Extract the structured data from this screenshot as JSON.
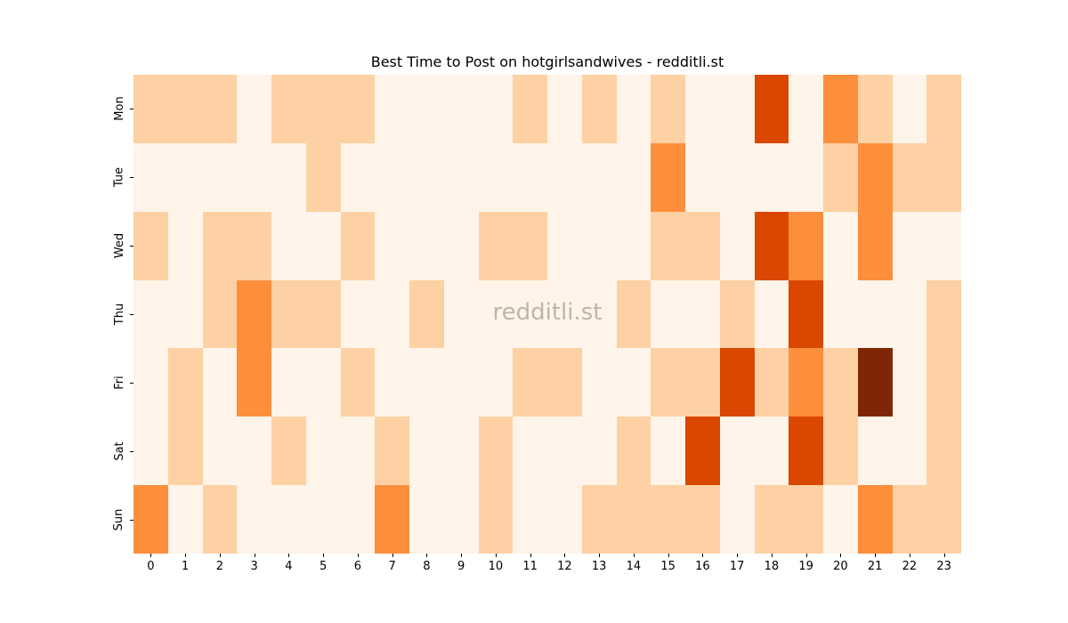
{
  "chart_data": {
    "type": "heatmap",
    "title": "Best Time to Post on hotgirlsandwives - redditli.st",
    "xlabel": "",
    "ylabel": "",
    "x": [
      "0",
      "1",
      "2",
      "3",
      "4",
      "5",
      "6",
      "7",
      "8",
      "9",
      "10",
      "11",
      "12",
      "13",
      "14",
      "15",
      "16",
      "17",
      "18",
      "19",
      "20",
      "21",
      "22",
      "23"
    ],
    "y": [
      "Mon",
      "Tue",
      "Wed",
      "Thu",
      "Fri",
      "Sat",
      "Sun"
    ],
    "values": [
      [
        1,
        1,
        1,
        0,
        1,
        1,
        1,
        0,
        0,
        0,
        0,
        1,
        0,
        1,
        0,
        1,
        0,
        0,
        3,
        0,
        2,
        1,
        0,
        1
      ],
      [
        0,
        0,
        0,
        0,
        0,
        1,
        0,
        0,
        0,
        0,
        0,
        0,
        0,
        0,
        0,
        2,
        0,
        0,
        0,
        0,
        1,
        2,
        1,
        1
      ],
      [
        1,
        0,
        1,
        1,
        0,
        0,
        1,
        0,
        0,
        0,
        1,
        1,
        0,
        0,
        0,
        1,
        1,
        0,
        3,
        2,
        0,
        2,
        0,
        0
      ],
      [
        0,
        0,
        1,
        2,
        1,
        1,
        0,
        0,
        1,
        0,
        0,
        0,
        0,
        0,
        1,
        0,
        0,
        1,
        0,
        3,
        0,
        0,
        0,
        1
      ],
      [
        0,
        1,
        0,
        2,
        0,
        0,
        1,
        0,
        0,
        0,
        0,
        1,
        1,
        0,
        0,
        1,
        1,
        3,
        1,
        2,
        1,
        4,
        0,
        1
      ],
      [
        0,
        1,
        0,
        0,
        1,
        0,
        0,
        1,
        0,
        0,
        1,
        0,
        0,
        0,
        1,
        0,
        3,
        0,
        0,
        3,
        1,
        0,
        0,
        1
      ],
      [
        2,
        0,
        1,
        0,
        0,
        0,
        0,
        2,
        0,
        0,
        1,
        0,
        0,
        1,
        1,
        1,
        1,
        0,
        1,
        1,
        0,
        2,
        1,
        1
      ]
    ],
    "colormap": "Oranges",
    "color_levels": [
      "#fef4e9",
      "#fdd1a3",
      "#fd8e3c",
      "#d94701",
      "#7f2704"
    ],
    "colorbar": false,
    "grid": false,
    "watermark": "redditli.st"
  }
}
